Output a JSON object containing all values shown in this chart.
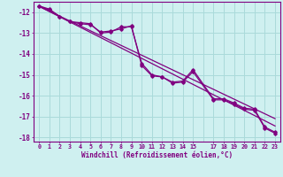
{
  "xlabel": "Windchill (Refroidissement éolien,°C)",
  "background_color": "#cff0f0",
  "grid_color": "#aadada",
  "line_color": "#800080",
  "xlim": [
    -0.5,
    23.5
  ],
  "ylim": [
    -18.2,
    -11.5
  ],
  "yticks": [
    -18,
    -17,
    -16,
    -15,
    -14,
    -13,
    -12
  ],
  "xtick_vals": [
    0,
    1,
    2,
    3,
    4,
    5,
    6,
    7,
    8,
    9,
    10,
    11,
    12,
    13,
    14,
    15,
    17,
    18,
    19,
    20,
    21,
    22,
    23
  ],
  "xtick_labels": [
    "0",
    "1",
    "2",
    "3",
    "4",
    "5",
    "6",
    "7",
    "8",
    "9",
    "10",
    "11",
    "12",
    "13",
    "14",
    "15",
    "17",
    "18",
    "19",
    "20",
    "21",
    "22",
    "23"
  ],
  "series1_x": [
    0,
    1,
    2,
    3,
    4,
    5,
    6,
    7,
    8,
    9,
    10,
    11,
    12,
    13,
    14,
    15,
    17,
    18,
    19,
    20,
    21,
    22,
    23
  ],
  "series1_y": [
    -11.7,
    -11.85,
    -12.2,
    -12.45,
    -12.55,
    -12.6,
    -12.95,
    -12.9,
    -12.8,
    -12.65,
    -14.55,
    -15.05,
    -15.1,
    -15.35,
    -15.3,
    -14.75,
    -16.15,
    -16.15,
    -16.35,
    -16.6,
    -16.65,
    -17.5,
    -17.75
  ],
  "series2_x": [
    0,
    1,
    2,
    3,
    4,
    5,
    6,
    7,
    8,
    9,
    10,
    11,
    12,
    13,
    14,
    15,
    17,
    18,
    19,
    20,
    21,
    22,
    23
  ],
  "series2_y": [
    -11.7,
    -11.9,
    -12.2,
    -12.45,
    -12.5,
    -12.55,
    -13.0,
    -12.95,
    -12.7,
    -12.7,
    -14.45,
    -15.0,
    -15.1,
    -15.4,
    -15.35,
    -14.85,
    -16.2,
    -16.2,
    -16.4,
    -16.65,
    -16.7,
    -17.55,
    -17.8
  ],
  "trend1_x": [
    0,
    23
  ],
  "trend1_y": [
    -11.72,
    -17.1
  ],
  "trend2_x": [
    0,
    23
  ],
  "trend2_y": [
    -11.72,
    -17.45
  ]
}
